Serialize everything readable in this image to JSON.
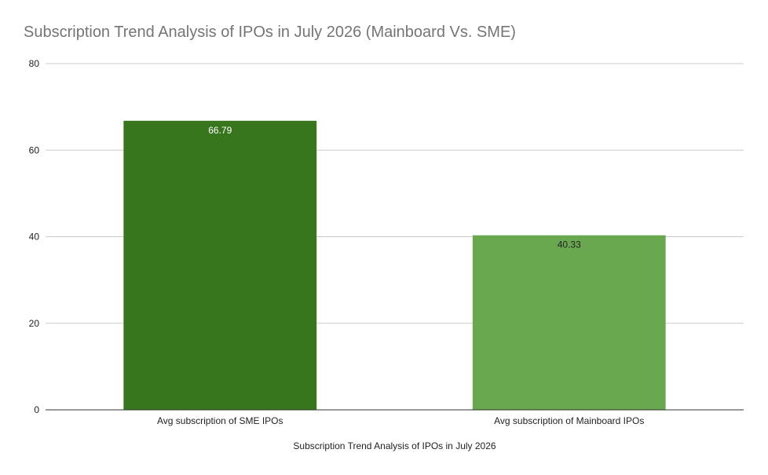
{
  "chart_data": {
    "type": "bar",
    "title": "Subscription Trend Analysis of IPOs in July 2026 (Mainboard Vs. SME)",
    "xlabel": "Subscription Trend Analysis of IPOs in July 2026",
    "ylabel": "",
    "categories": [
      "Avg subscription of SME IPOs",
      "Avg subscription of Mainboard IPOs"
    ],
    "series": [
      {
        "values": [
          66.79,
          40.33
        ],
        "data_labels": [
          "66.79",
          "40.33"
        ],
        "colors": [
          "#38761d",
          "#6aa84f"
        ],
        "label_colors": [
          "#ffffff",
          "#222222"
        ]
      }
    ],
    "ylim": [
      0,
      80
    ],
    "yticks": [
      0,
      20,
      40,
      60,
      80
    ],
    "ytick_labels": [
      "0",
      "20",
      "40",
      "60",
      "80"
    ],
    "grid": true,
    "legend": "none"
  }
}
